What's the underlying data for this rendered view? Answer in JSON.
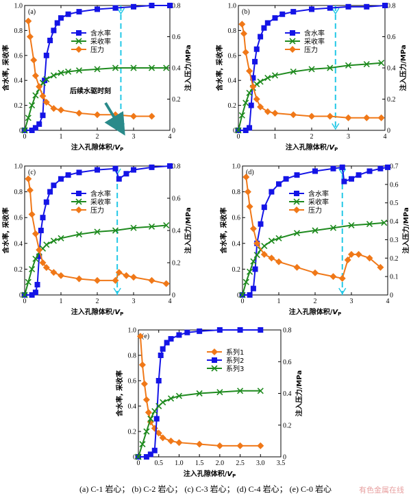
{
  "caption": "(a) C-1 岩心； (b) C-2 岩心； (c) C-3 岩心； (d) C-4 岩心； (e) C-0 岩心",
  "watermark": "有色金属在线",
  "colors": {
    "water": "#1414e6",
    "recovery": "#1e8a1e",
    "pressure": "#f07818",
    "marker": "#22c8e6",
    "arrow": "#2a8a8a"
  },
  "chart_data": [
    {
      "panel_label": "(a)",
      "type": "line",
      "xlabel": "注入孔隙体积/V_P",
      "ylabel_left": "含水率, 采收率",
      "ylabel_right": "注入压力/MPa",
      "xlim": [
        0,
        4
      ],
      "ylim_left": [
        0,
        1
      ],
      "ylim_right": [
        0,
        0.8
      ],
      "xticks": [
        0,
        1,
        2,
        3,
        4
      ],
      "yticks_left": [
        0,
        0.2,
        0.4,
        0.6,
        0.8,
        1.0
      ],
      "yticks_right": [
        0,
        0.2,
        0.4,
        0.6,
        0.8
      ],
      "legend": "top-center",
      "vline_x": 2.65,
      "annotation": {
        "text": "后续水驱时刻",
        "x": 2.65,
        "y_right": 0.0
      },
      "series": [
        {
          "name": "含水率",
          "marker": "square",
          "axis": "left",
          "x": [
            0,
            0.2,
            0.3,
            0.4,
            0.5,
            0.55,
            0.6,
            0.7,
            0.8,
            0.9,
            1.0,
            1.2,
            1.5,
            2.0,
            2.5,
            3.0,
            3.5,
            4.0
          ],
          "y": [
            0,
            0,
            0.02,
            0.05,
            0.12,
            0.4,
            0.6,
            0.72,
            0.8,
            0.86,
            0.9,
            0.93,
            0.95,
            0.97,
            0.98,
            0.99,
            1.0,
            1.0
          ]
        },
        {
          "name": "采收率",
          "marker": "x",
          "axis": "left",
          "x": [
            0,
            0.1,
            0.2,
            0.3,
            0.4,
            0.5,
            0.6,
            0.8,
            1.0,
            1.2,
            1.5,
            2.0,
            2.5,
            3.0,
            3.5,
            3.9
          ],
          "y": [
            0,
            0.1,
            0.2,
            0.28,
            0.33,
            0.38,
            0.41,
            0.44,
            0.46,
            0.47,
            0.48,
            0.49,
            0.5,
            0.5,
            0.5,
            0.5
          ]
        },
        {
          "name": "压力",
          "marker": "diamond",
          "axis": "right",
          "x": [
            0.1,
            0.15,
            0.25,
            0.3,
            0.4,
            0.5,
            0.6,
            0.8,
            1.0,
            1.5,
            2.0,
            2.5,
            3.0,
            3.5
          ],
          "y": [
            0.7,
            0.6,
            0.45,
            0.35,
            0.28,
            0.22,
            0.18,
            0.14,
            0.13,
            0.11,
            0.1,
            0.1,
            0.09,
            0.09
          ]
        }
      ]
    },
    {
      "panel_label": "(b)",
      "type": "line",
      "xlabel": "注入孔隙体积/V_P",
      "ylabel_left": "含水率, 采收率",
      "ylabel_right": "注入压力/MPa",
      "xlim": [
        0,
        4
      ],
      "ylim_left": [
        0,
        1
      ],
      "ylim_right": [
        0,
        0.8
      ],
      "xticks": [
        0,
        1,
        2,
        3,
        4
      ],
      "yticks_left": [
        0,
        0.2,
        0.4,
        0.6,
        0.8,
        1.0
      ],
      "yticks_right": [
        0,
        0.2,
        0.4,
        0.6,
        0.8
      ],
      "legend": "top-center",
      "vline_x": 2.65,
      "series": [
        {
          "name": "含水率",
          "marker": "square",
          "axis": "left",
          "x": [
            0,
            0.2,
            0.3,
            0.35,
            0.4,
            0.45,
            0.5,
            0.6,
            0.7,
            0.8,
            1.0,
            1.2,
            1.5,
            2.0,
            2.5,
            3.0,
            3.5,
            4.0
          ],
          "y": [
            0,
            0,
            0.02,
            0.2,
            0.42,
            0.55,
            0.65,
            0.75,
            0.82,
            0.86,
            0.9,
            0.93,
            0.95,
            0.97,
            0.98,
            0.99,
            0.99,
            1.0
          ]
        },
        {
          "name": "采收率",
          "marker": "x",
          "axis": "left",
          "x": [
            0,
            0.1,
            0.2,
            0.3,
            0.4,
            0.5,
            0.6,
            0.8,
            1.0,
            1.5,
            2.0,
            2.5,
            3.0,
            3.5,
            3.9
          ],
          "y": [
            0,
            0.12,
            0.22,
            0.3,
            0.34,
            0.37,
            0.39,
            0.42,
            0.44,
            0.47,
            0.49,
            0.5,
            0.52,
            0.53,
            0.54
          ]
        },
        {
          "name": "压力",
          "marker": "diamond",
          "axis": "right",
          "x": [
            0.1,
            0.15,
            0.2,
            0.3,
            0.4,
            0.5,
            0.6,
            0.8,
            1.0,
            1.5,
            2.0,
            2.5,
            3.0,
            3.5,
            3.9
          ],
          "y": [
            0.68,
            0.62,
            0.5,
            0.38,
            0.28,
            0.2,
            0.15,
            0.12,
            0.11,
            0.1,
            0.09,
            0.09,
            0.08,
            0.08,
            0.08
          ]
        }
      ]
    },
    {
      "panel_label": "(c)",
      "type": "line",
      "xlabel": "注入孔隙体积/V_P",
      "ylabel_left": "含水率, 采收率",
      "ylabel_right": "注入压力/MPa",
      "xlim": [
        0,
        4
      ],
      "ylim_left": [
        0,
        1
      ],
      "ylim_right": [
        0,
        0.8
      ],
      "xticks": [
        0,
        1,
        2,
        3,
        4
      ],
      "yticks_left": [
        0,
        0.2,
        0.4,
        0.6,
        0.8,
        1.0
      ],
      "yticks_right": [
        0,
        0.2,
        0.4,
        0.6,
        0.8
      ],
      "legend": "top-center",
      "vline_x": 2.55,
      "series": [
        {
          "name": "含水率",
          "marker": "square",
          "axis": "left",
          "x": [
            0,
            0.2,
            0.3,
            0.35,
            0.4,
            0.45,
            0.5,
            0.6,
            0.7,
            0.8,
            1.0,
            1.2,
            1.5,
            2.0,
            2.5,
            2.6,
            2.8,
            3.0,
            3.5,
            4.0
          ],
          "y": [
            0,
            0,
            0.02,
            0.08,
            0.3,
            0.5,
            0.6,
            0.72,
            0.8,
            0.85,
            0.9,
            0.93,
            0.95,
            0.97,
            0.98,
            0.9,
            0.94,
            0.97,
            0.99,
            1.0
          ]
        },
        {
          "name": "采收率",
          "marker": "x",
          "axis": "left",
          "x": [
            0,
            0.1,
            0.2,
            0.3,
            0.4,
            0.5,
            0.6,
            0.8,
            1.0,
            1.5,
            2.0,
            2.5,
            3.0,
            3.5,
            3.9
          ],
          "y": [
            0,
            0.1,
            0.2,
            0.28,
            0.33,
            0.36,
            0.39,
            0.42,
            0.44,
            0.47,
            0.49,
            0.5,
            0.52,
            0.53,
            0.54
          ]
        },
        {
          "name": "压力",
          "marker": "diamond",
          "axis": "right",
          "x": [
            0.1,
            0.15,
            0.2,
            0.3,
            0.4,
            0.5,
            0.6,
            0.8,
            1.0,
            1.5,
            2.0,
            2.5,
            2.6,
            2.8,
            3.0,
            3.5,
            3.9
          ],
          "y": [
            0.72,
            0.65,
            0.5,
            0.38,
            0.28,
            0.2,
            0.17,
            0.14,
            0.12,
            0.1,
            0.09,
            0.09,
            0.14,
            0.12,
            0.11,
            0.09,
            0.07
          ]
        }
      ]
    },
    {
      "panel_label": "(d)",
      "type": "line",
      "xlabel": "注入孔隙体积/V_P",
      "ylabel_left": "含水率, 采收率",
      "ylabel_right": "注入压力/MPa",
      "xlim": [
        0,
        4
      ],
      "ylim_left": [
        0,
        1
      ],
      "ylim_right": [
        0,
        0.7
      ],
      "xticks": [
        0,
        1,
        2,
        3,
        4
      ],
      "yticks_left": [
        0,
        0.2,
        0.4,
        0.6,
        0.8,
        1.0
      ],
      "yticks_right": [
        0,
        0.1,
        0.2,
        0.3,
        0.4,
        0.5,
        0.6,
        0.7
      ],
      "legend": "top-center",
      "vline_x": 2.75,
      "series": [
        {
          "name": "含水率",
          "marker": "square",
          "axis": "left",
          "x": [
            0,
            0.2,
            0.3,
            0.35,
            0.4,
            0.5,
            0.6,
            0.8,
            1.0,
            1.2,
            1.5,
            2.0,
            2.5,
            2.75,
            2.8,
            3.0,
            3.2,
            3.5,
            3.8,
            4.0
          ],
          "y": [
            0,
            0,
            0.05,
            0.2,
            0.4,
            0.55,
            0.68,
            0.8,
            0.86,
            0.9,
            0.93,
            0.96,
            0.98,
            0.99,
            0.88,
            0.9,
            0.93,
            0.96,
            0.98,
            0.99
          ]
        },
        {
          "name": "采收率",
          "marker": "x",
          "axis": "left",
          "x": [
            0,
            0.1,
            0.2,
            0.3,
            0.4,
            0.5,
            0.6,
            0.8,
            1.0,
            1.5,
            2.0,
            2.5,
            3.0,
            3.5,
            3.9
          ],
          "y": [
            0,
            0.1,
            0.18,
            0.26,
            0.31,
            0.35,
            0.38,
            0.42,
            0.44,
            0.48,
            0.5,
            0.52,
            0.54,
            0.55,
            0.56
          ]
        },
        {
          "name": "压力",
          "marker": "diamond",
          "axis": "right",
          "x": [
            0.1,
            0.15,
            0.2,
            0.3,
            0.4,
            0.6,
            0.8,
            1.0,
            1.5,
            2.0,
            2.5,
            2.75,
            2.9,
            3.0,
            3.2,
            3.5,
            3.8
          ],
          "y": [
            0.64,
            0.56,
            0.48,
            0.36,
            0.28,
            0.22,
            0.2,
            0.18,
            0.15,
            0.12,
            0.1,
            0.09,
            0.19,
            0.22,
            0.22,
            0.2,
            0.15
          ]
        }
      ]
    },
    {
      "panel_label": "(e)",
      "type": "line",
      "xlabel": "注入孔隙体积/V_P",
      "ylabel_left": "含水率, 采收率",
      "ylabel_right": "注入压力/MPa",
      "xlim": [
        0,
        3.5
      ],
      "ylim_left": [
        0,
        1
      ],
      "ylim_right": [
        0,
        0.8
      ],
      "xticks": [
        0,
        0.5,
        1.0,
        1.5,
        2.0,
        2.5,
        3.0,
        3.5
      ],
      "yticks_left": [
        0,
        0.2,
        0.4,
        0.6,
        0.8,
        1.0
      ],
      "yticks_right": [
        0,
        0.2,
        0.4,
        0.6,
        0.8
      ],
      "legend": "top-center",
      "series": [
        {
          "name": "系列1",
          "marker": "diamond",
          "axis": "right",
          "x": [
            0.05,
            0.1,
            0.15,
            0.2,
            0.25,
            0.3,
            0.4,
            0.5,
            0.6,
            0.8,
            1.0,
            1.5,
            2.0,
            2.5,
            3.0
          ],
          "y": [
            0.76,
            0.58,
            0.46,
            0.36,
            0.28,
            0.22,
            0.18,
            0.15,
            0.12,
            0.1,
            0.09,
            0.08,
            0.07,
            0.07,
            0.07
          ]
        },
        {
          "name": "系列2",
          "marker": "square",
          "axis": "left",
          "x": [
            0,
            0.2,
            0.3,
            0.4,
            0.45,
            0.5,
            0.55,
            0.6,
            0.7,
            0.8,
            1.0,
            1.2,
            1.5,
            2.0,
            2.5,
            3.0
          ],
          "y": [
            0,
            0,
            0.02,
            0.05,
            0.3,
            0.6,
            0.8,
            0.85,
            0.9,
            0.93,
            0.96,
            0.98,
            0.99,
            1.0,
            1.0,
            1.0
          ]
        },
        {
          "name": "系列3",
          "marker": "x",
          "axis": "left",
          "x": [
            0,
            0.1,
            0.2,
            0.3,
            0.4,
            0.5,
            0.6,
            0.8,
            1.0,
            1.5,
            2.0,
            2.5,
            3.0
          ],
          "y": [
            0,
            0.1,
            0.2,
            0.3,
            0.36,
            0.4,
            0.43,
            0.46,
            0.48,
            0.5,
            0.51,
            0.52,
            0.52
          ]
        }
      ]
    }
  ]
}
